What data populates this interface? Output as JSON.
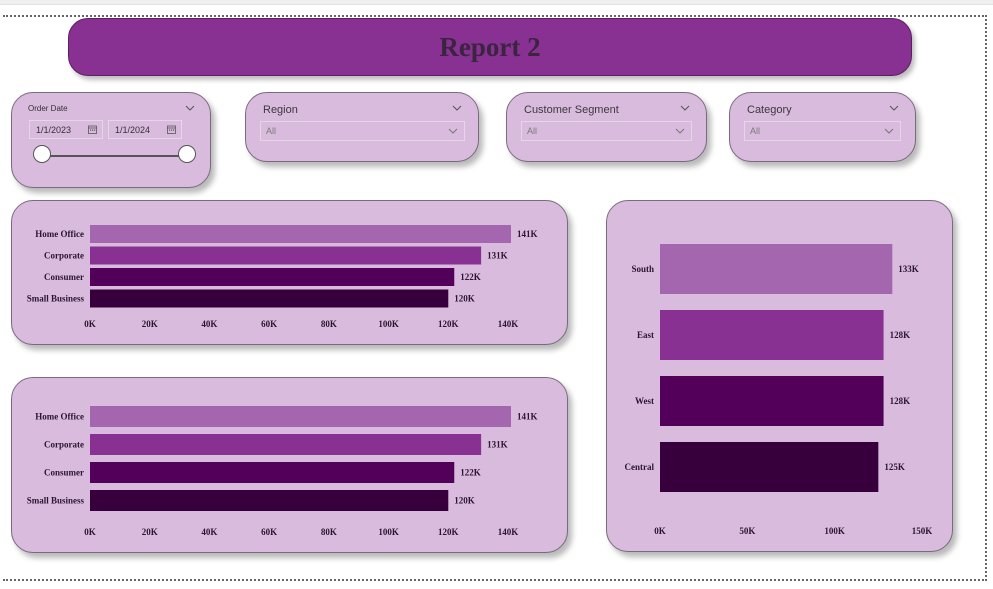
{
  "report": {
    "title": "Report 2"
  },
  "slicers": {
    "order_date": {
      "title": "Order Date",
      "start": "1/1/2023",
      "end": "1/1/2024"
    },
    "region": {
      "title": "Region",
      "value": "All"
    },
    "customer_segment": {
      "title": "Customer Segment",
      "value": "All"
    },
    "category": {
      "title": "Category",
      "value": "All"
    }
  },
  "icons": {
    "dropdown": "chevron-down-icon",
    "calendar": "calendar-icon"
  },
  "colors": {
    "title_bar": "#883193",
    "card_bg": "#d9bbdd",
    "bar_light": "#a566b0",
    "bar_mid": "#883193",
    "bar_dark": "#52005a",
    "bar_darkest": "#37003c"
  },
  "chart_data": [
    {
      "type": "bar",
      "orientation": "horizontal",
      "categories": [
        "Home Office",
        "Corporate",
        "Consumer",
        "Small Business"
      ],
      "values": [
        141,
        131,
        122,
        120
      ],
      "data_labels": [
        "141K",
        "131K",
        "122K",
        "120K"
      ],
      "xlim": [
        0,
        140
      ],
      "xticks": [
        "0K",
        "20K",
        "40K",
        "60K",
        "80K",
        "100K",
        "120K",
        "140K"
      ],
      "xtick_values": [
        0,
        20,
        40,
        60,
        80,
        100,
        120,
        140
      ],
      "grid": false
    },
    {
      "type": "bar",
      "orientation": "horizontal",
      "categories": [
        "Home Office",
        "Corporate",
        "Consumer",
        "Small Business"
      ],
      "values": [
        141,
        131,
        122,
        120
      ],
      "data_labels": [
        "141K",
        "131K",
        "122K",
        "120K"
      ],
      "xlim": [
        0,
        140
      ],
      "xticks": [
        "0K",
        "20K",
        "40K",
        "60K",
        "80K",
        "100K",
        "120K",
        "140K"
      ],
      "xtick_values": [
        0,
        20,
        40,
        60,
        80,
        100,
        120,
        140
      ],
      "grid": false
    },
    {
      "type": "bar",
      "orientation": "horizontal",
      "categories": [
        "South",
        "East",
        "West",
        "Central"
      ],
      "values": [
        133,
        128,
        128,
        125
      ],
      "data_labels": [
        "133K",
        "128K",
        "128K",
        "125K"
      ],
      "xlim": [
        0,
        150
      ],
      "xticks": [
        "0K",
        "50K",
        "100K",
        "150K"
      ],
      "xtick_values": [
        0,
        50,
        100,
        150
      ],
      "grid": false
    }
  ]
}
